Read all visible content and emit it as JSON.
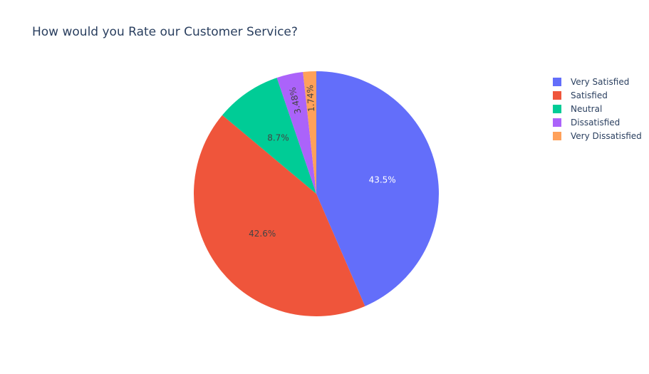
{
  "chart_data": {
    "type": "pie",
    "title": "How would you Rate our Customer Service?",
    "labels": [
      "Very Satisfied",
      "Satisfied",
      "Neutral",
      "Dissatisfied",
      "Very Dissatisfied"
    ],
    "values": [
      43.5,
      42.6,
      8.7,
      3.48,
      1.74
    ],
    "value_labels": [
      "43.5%",
      "42.6%",
      "8.7%",
      "3.48%",
      "1.74%"
    ],
    "colors": [
      "#636efa",
      "#EF553B",
      "#00cc96",
      "#ab63fa",
      "#FFA15A"
    ],
    "direction": "clockwise",
    "start_angle": "12 o'clock",
    "legend_position": "top-right"
  }
}
